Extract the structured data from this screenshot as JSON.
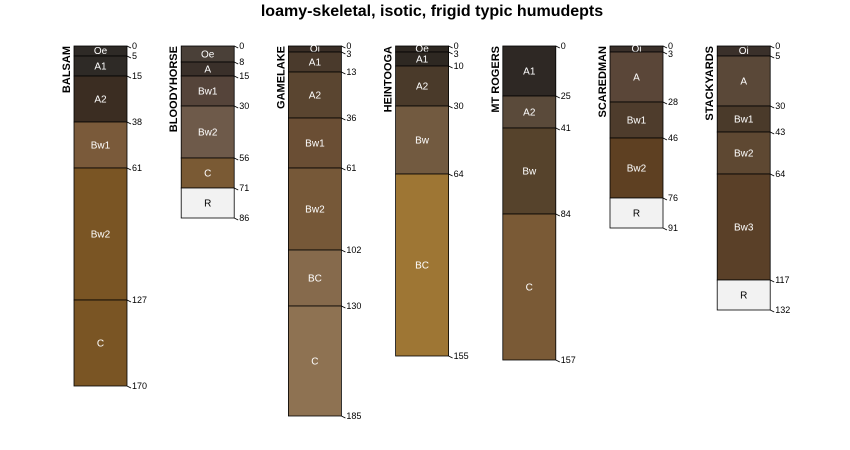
{
  "title": "loamy-skeletal, isotic, frigid typic humudepts",
  "profiles": [
    {
      "name": "BALSAM",
      "bottom": 170,
      "horizons": [
        {
          "name": "Oe",
          "top": 0,
          "bottom": 5,
          "color": "#2e2a26",
          "text": "#ffffff"
        },
        {
          "name": "A1",
          "top": 5,
          "bottom": 15,
          "color": "#2e2a26",
          "text": "#ffffff"
        },
        {
          "name": "A2",
          "top": 15,
          "bottom": 38,
          "color": "#3b2d22",
          "text": "#ffffff"
        },
        {
          "name": "Bw1",
          "top": 38,
          "bottom": 61,
          "color": "#7a5a3a",
          "text": "#ffffff"
        },
        {
          "name": "Bw2",
          "top": 61,
          "bottom": 127,
          "color": "#7a5524",
          "text": "#ffffff"
        },
        {
          "name": "C",
          "top": 127,
          "bottom": 170,
          "color": "#7a5524",
          "text": "#ffffff"
        }
      ]
    },
    {
      "name": "BLOODYHORSE",
      "bottom": 86,
      "horizons": [
        {
          "name": "Oe",
          "top": 0,
          "bottom": 8,
          "color": "#4a4038",
          "text": "#ffffff"
        },
        {
          "name": "A",
          "top": 8,
          "bottom": 15,
          "color": "#3a302a",
          "text": "#ffffff"
        },
        {
          "name": "Bw1",
          "top": 15,
          "bottom": 30,
          "color": "#55443a",
          "text": "#ffffff"
        },
        {
          "name": "Bw2",
          "top": 30,
          "bottom": 56,
          "color": "#6e5a4a",
          "text": "#ffffff"
        },
        {
          "name": "C",
          "top": 56,
          "bottom": 71,
          "color": "#7a5a34",
          "text": "#ffffff"
        },
        {
          "name": "R",
          "top": 71,
          "bottom": 86,
          "color": "#f2f2f2",
          "text": "#000000"
        }
      ]
    },
    {
      "name": "GAMELAKE",
      "bottom": 185,
      "horizons": [
        {
          "name": "Oi",
          "top": 0,
          "bottom": 3,
          "color": "#3a2e26",
          "text": "#ffffff"
        },
        {
          "name": "A1",
          "top": 3,
          "bottom": 13,
          "color": "#4a3a2c",
          "text": "#ffffff"
        },
        {
          "name": "A2",
          "top": 13,
          "bottom": 36,
          "color": "#5a4530",
          "text": "#ffffff"
        },
        {
          "name": "Bw1",
          "top": 36,
          "bottom": 61,
          "color": "#6a4e34",
          "text": "#ffffff"
        },
        {
          "name": "Bw2",
          "top": 61,
          "bottom": 102,
          "color": "#765838",
          "text": "#ffffff"
        },
        {
          "name": "BC",
          "top": 102,
          "bottom": 130,
          "color": "#866a4c",
          "text": "#ffffff"
        },
        {
          "name": "C",
          "top": 130,
          "bottom": 185,
          "color": "#8e7252",
          "text": "#ffffff"
        }
      ]
    },
    {
      "name": "HEINTOOGA",
      "bottom": 155,
      "horizons": [
        {
          "name": "Oe",
          "top": 0,
          "bottom": 3,
          "color": "#2e2822",
          "text": "#ffffff"
        },
        {
          "name": "A1",
          "top": 3,
          "bottom": 10,
          "color": "#2e2822",
          "text": "#ffffff"
        },
        {
          "name": "A2",
          "top": 10,
          "bottom": 30,
          "color": "#4a3a2a",
          "text": "#ffffff"
        },
        {
          "name": "Bw",
          "top": 30,
          "bottom": 64,
          "color": "#725a40",
          "text": "#ffffff"
        },
        {
          "name": "BC",
          "top": 64,
          "bottom": 155,
          "color": "#9e7634",
          "text": "#ffffff"
        }
      ]
    },
    {
      "name": "MT ROGERS",
      "bottom": 157,
      "horizons": [
        {
          "name": "A1",
          "top": 0,
          "bottom": 25,
          "color": "#2e2824",
          "text": "#ffffff"
        },
        {
          "name": "A2",
          "top": 25,
          "bottom": 41,
          "color": "#5a4a3a",
          "text": "#ffffff"
        },
        {
          "name": "Bw",
          "top": 41,
          "bottom": 84,
          "color": "#56432c",
          "text": "#ffffff"
        },
        {
          "name": "C",
          "top": 84,
          "bottom": 157,
          "color": "#7a5a36",
          "text": "#ffffff"
        }
      ]
    },
    {
      "name": "SCAREDMAN",
      "bottom": 91,
      "horizons": [
        {
          "name": "Oi",
          "top": 0,
          "bottom": 3,
          "color": "#3a302a",
          "text": "#ffffff"
        },
        {
          "name": "A",
          "top": 3,
          "bottom": 28,
          "color": "#5a4638",
          "text": "#ffffff"
        },
        {
          "name": "Bw1",
          "top": 28,
          "bottom": 46,
          "color": "#4e3c2c",
          "text": "#ffffff"
        },
        {
          "name": "Bw2",
          "top": 46,
          "bottom": 76,
          "color": "#5e4022",
          "text": "#ffffff"
        },
        {
          "name": "R",
          "top": 76,
          "bottom": 91,
          "color": "#f2f2f2",
          "text": "#000000"
        }
      ]
    },
    {
      "name": "STACKYARDS",
      "bottom": 132,
      "horizons": [
        {
          "name": "Oi",
          "top": 0,
          "bottom": 5,
          "color": "#3a302a",
          "text": "#ffffff"
        },
        {
          "name": "A",
          "top": 5,
          "bottom": 30,
          "color": "#5a4838",
          "text": "#ffffff"
        },
        {
          "name": "Bw1",
          "top": 30,
          "bottom": 43,
          "color": "#4a3a2a",
          "text": "#ffffff"
        },
        {
          "name": "Bw2",
          "top": 43,
          "bottom": 64,
          "color": "#5e4832",
          "text": "#ffffff"
        },
        {
          "name": "Bw3",
          "top": 64,
          "bottom": 117,
          "color": "#5a4028",
          "text": "#ffffff"
        },
        {
          "name": "R",
          "top": 117,
          "bottom": 132,
          "color": "#f2f2f2",
          "text": "#000000"
        }
      ]
    }
  ]
}
